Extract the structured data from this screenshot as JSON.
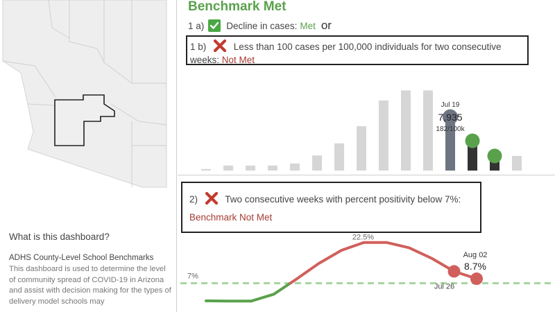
{
  "info": {
    "heading": "What is this dashboard?",
    "subtitle": "ADHS County-Level School Benchmarks",
    "body": "This dashboard is used to determine the level of community spread of COVID-19 in Arizona and assist with decision making for the types of delivery model schools may"
  },
  "benchmark": {
    "title": "Benchmark Met",
    "item_1a": {
      "number": "1 a)",
      "label": "Decline in cases:",
      "status": "Met",
      "connector": "or",
      "icon": "check-icon"
    },
    "item_1b": {
      "number": "1 b)",
      "label": "Less than 100 cases per 100,000 individuals for two consecutive weeks:",
      "status": "Not Met",
      "icon": "x-icon"
    },
    "item_2": {
      "number": "2)",
      "label": "Two consecutive weeks with percent positivity below 7%:",
      "status": "Benchmark Not Met",
      "icon": "x-icon"
    }
  },
  "colors": {
    "met": "#5aa14c",
    "not_met": "#a63b33",
    "bar_grey": "#d6d6d6",
    "highlight_slate": "#6e7582",
    "line_red": "#d0605c",
    "line_green": "#5aa14c",
    "threshold_green": "#a8d5a0"
  },
  "chart_data": [
    {
      "type": "bar",
      "title": "",
      "values": [
        3,
        10,
        10,
        10,
        14,
        30,
        54,
        88,
        139,
        159,
        159,
        120,
        72,
        42,
        29
      ],
      "highlight_index": 11,
      "highlight": {
        "date": "Jul 19",
        "value": "7,935",
        "rate": "182/100k"
      },
      "lollipop_indices": [
        11,
        12,
        13
      ],
      "ylim": [
        0,
        165
      ]
    },
    {
      "type": "line",
      "title": "",
      "values": [
        0.3,
        0.2,
        0.2,
        2.8,
        8.5,
        14.5,
        19.5,
        22.5,
        22.5,
        20.5,
        16.5,
        11.5,
        8.7
      ],
      "peak_label": "22.5%",
      "threshold": {
        "value": 7,
        "label": "7%"
      },
      "annotations": [
        {
          "index": 11,
          "label": "Jul 26"
        },
        {
          "index": 12,
          "label": "Aug 02",
          "value_label": "8.7%"
        }
      ],
      "ylim": [
        -5,
        24
      ]
    }
  ]
}
